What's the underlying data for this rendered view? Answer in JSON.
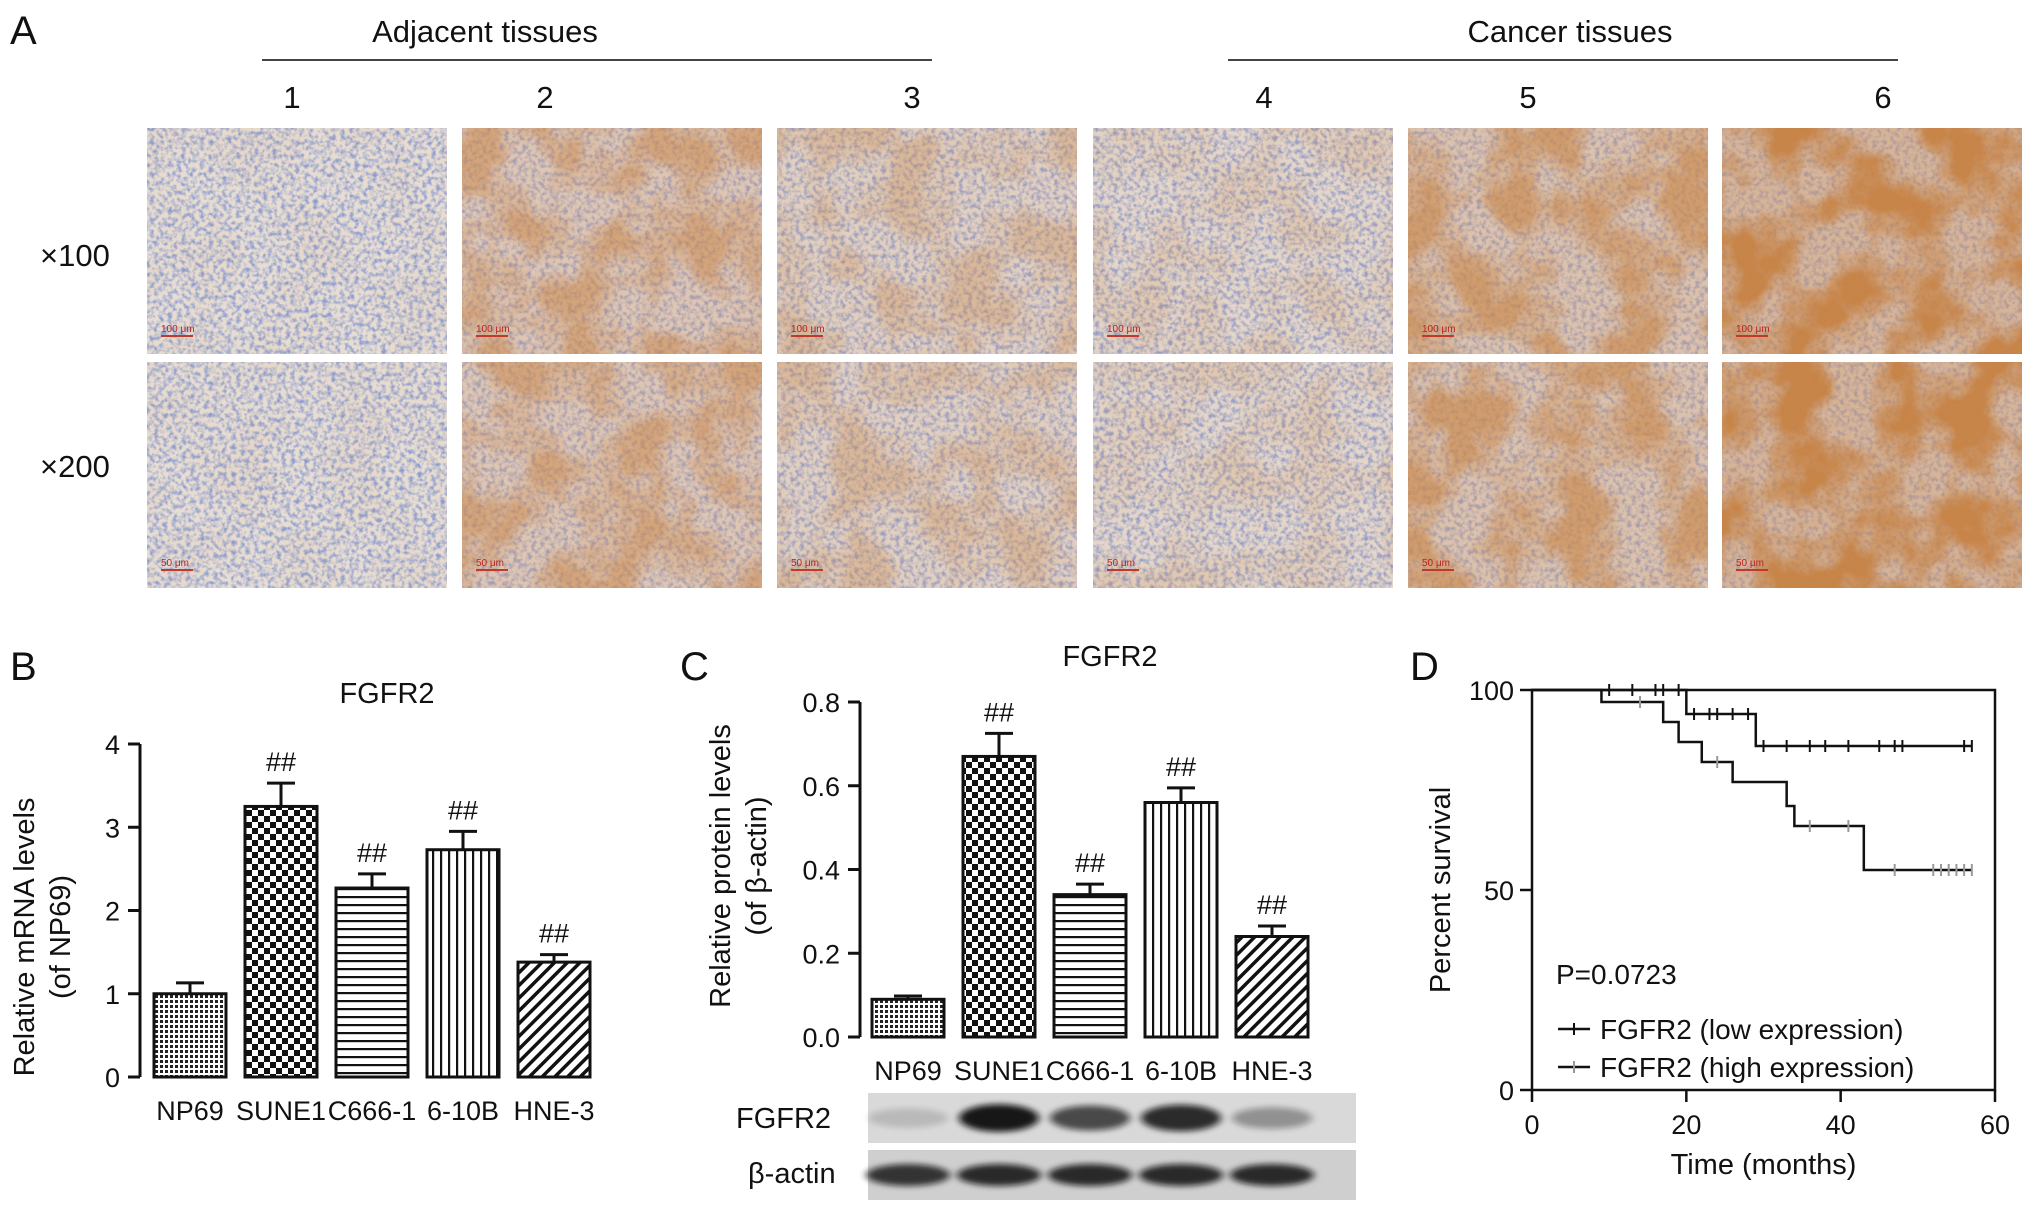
{
  "panels": {
    "A": {
      "letter": "A",
      "group_headers": [
        "Adjacent tissues",
        "Cancer tissues"
      ],
      "columns": [
        "1",
        "2",
        "3",
        "4",
        "5",
        "6"
      ],
      "rows": [
        "×100",
        "×200"
      ],
      "scale_bars": [
        "100 μm",
        "50 μm"
      ],
      "stain_intensity": [
        0.05,
        0.55,
        0.35,
        0.2,
        0.65,
        0.95
      ],
      "colors": {
        "hematoxylin": "#4a5fb0",
        "dab": "#b5601e",
        "background": "#e8dfd6"
      }
    },
    "B": {
      "letter": "B",
      "title": "FGFR2",
      "ylabel_line1": "Relative mRNA levels",
      "ylabel_line2": "(of NP69)"
    },
    "C": {
      "letter": "C",
      "title": "FGFR2",
      "ylabel_line1": "Relative protein levels",
      "ylabel_line2": "(of β-actin)",
      "blot_labels": [
        "FGFR2",
        "β-actin"
      ],
      "blot_fgfr2_intensity": [
        0.15,
        0.95,
        0.7,
        0.85,
        0.35
      ],
      "blot_actin_intensity": [
        0.8,
        0.85,
        0.85,
        0.85,
        0.85
      ]
    },
    "D": {
      "letter": "D",
      "annotation": "P=0.0723"
    }
  },
  "chart_data": [
    {
      "id": "B",
      "type": "bar",
      "title": "FGFR2",
      "ylabel": "Relative mRNA levels (of NP69)",
      "xlabel": "",
      "categories": [
        "NP69",
        "SUNE1",
        "C666-1",
        "6-10B",
        "HNE-3"
      ],
      "values": [
        1.0,
        3.25,
        2.27,
        2.73,
        1.38
      ],
      "errors": [
        0.13,
        0.28,
        0.17,
        0.22,
        0.09
      ],
      "markers": [
        "",
        "##",
        "##",
        "##",
        "##"
      ],
      "patterns": [
        "dense-dot",
        "checker",
        "hline",
        "vline",
        "diag"
      ],
      "ylim": [
        0,
        4
      ],
      "yticks": [
        0,
        1,
        2,
        3,
        4
      ],
      "ytick_labels": [
        "0",
        "1",
        "2",
        "3",
        "4"
      ]
    },
    {
      "id": "C",
      "type": "bar",
      "title": "FGFR2",
      "ylabel": "Relative protein levels (of β-actin)",
      "xlabel": "",
      "categories": [
        "NP69",
        "SUNE1",
        "C666-1",
        "6-10B",
        "HNE-3"
      ],
      "values": [
        0.09,
        0.67,
        0.34,
        0.56,
        0.24
      ],
      "errors": [
        0.008,
        0.055,
        0.025,
        0.035,
        0.025
      ],
      "markers": [
        "",
        "##",
        "##",
        "##",
        "##"
      ],
      "patterns": [
        "dense-dot",
        "checker",
        "hline",
        "vline",
        "diag"
      ],
      "ylim": [
        0,
        0.8
      ],
      "yticks": [
        0,
        0.2,
        0.4,
        0.6,
        0.8
      ],
      "ytick_labels": [
        "0.0",
        "0.2",
        "0.4",
        "0.6",
        "0.8"
      ]
    },
    {
      "id": "D",
      "type": "line",
      "step": true,
      "xlabel": "Time (months)",
      "ylabel": "Percent survival",
      "xlim": [
        0,
        60
      ],
      "ylim": [
        0,
        100
      ],
      "xticks": [
        0,
        20,
        40,
        60
      ],
      "yticks": [
        0,
        50,
        100
      ],
      "xtick_labels": [
        "0",
        "20",
        "40",
        "60"
      ],
      "ytick_labels": [
        "0",
        "50",
        "100"
      ],
      "legend_position": "bottom-left",
      "series": [
        {
          "name": "FGFR2 (low expression)",
          "steps": [
            [
              0,
              100
            ],
            [
              20,
              100
            ],
            [
              20,
              94
            ],
            [
              29,
              94
            ],
            [
              29,
              86
            ],
            [
              57,
              86
            ]
          ],
          "censored": [
            [
              10,
              100
            ],
            [
              13,
              100
            ],
            [
              16,
              100
            ],
            [
              17,
              100
            ],
            [
              19,
              100
            ],
            [
              21,
              94
            ],
            [
              23,
              94
            ],
            [
              24,
              94
            ],
            [
              26,
              94
            ],
            [
              28,
              94
            ],
            [
              30,
              86
            ],
            [
              33,
              86
            ],
            [
              36,
              86
            ],
            [
              38,
              86
            ],
            [
              41,
              86
            ],
            [
              45,
              86
            ],
            [
              47,
              86
            ],
            [
              48,
              86
            ],
            [
              56,
              86
            ],
            [
              57,
              86
            ]
          ]
        },
        {
          "name": "FGFR2 (high expression)",
          "steps": [
            [
              0,
              100
            ],
            [
              9,
              100
            ],
            [
              9,
              97
            ],
            [
              17,
              97
            ],
            [
              17,
              92
            ],
            [
              19,
              92
            ],
            [
              19,
              87
            ],
            [
              22,
              87
            ],
            [
              22,
              82
            ],
            [
              26,
              82
            ],
            [
              26,
              77
            ],
            [
              33,
              77
            ],
            [
              33,
              71
            ],
            [
              34,
              71
            ],
            [
              34,
              66
            ],
            [
              43,
              66
            ],
            [
              43,
              55
            ],
            [
              57,
              55
            ]
          ],
          "censored": [
            [
              14,
              97
            ],
            [
              24,
              82
            ],
            [
              36,
              66
            ],
            [
              41,
              66
            ],
            [
              47,
              55
            ],
            [
              52,
              55
            ],
            [
              53,
              55
            ],
            [
              54,
              55
            ],
            [
              55,
              55
            ],
            [
              56,
              55
            ],
            [
              57,
              55
            ]
          ]
        }
      ]
    }
  ]
}
